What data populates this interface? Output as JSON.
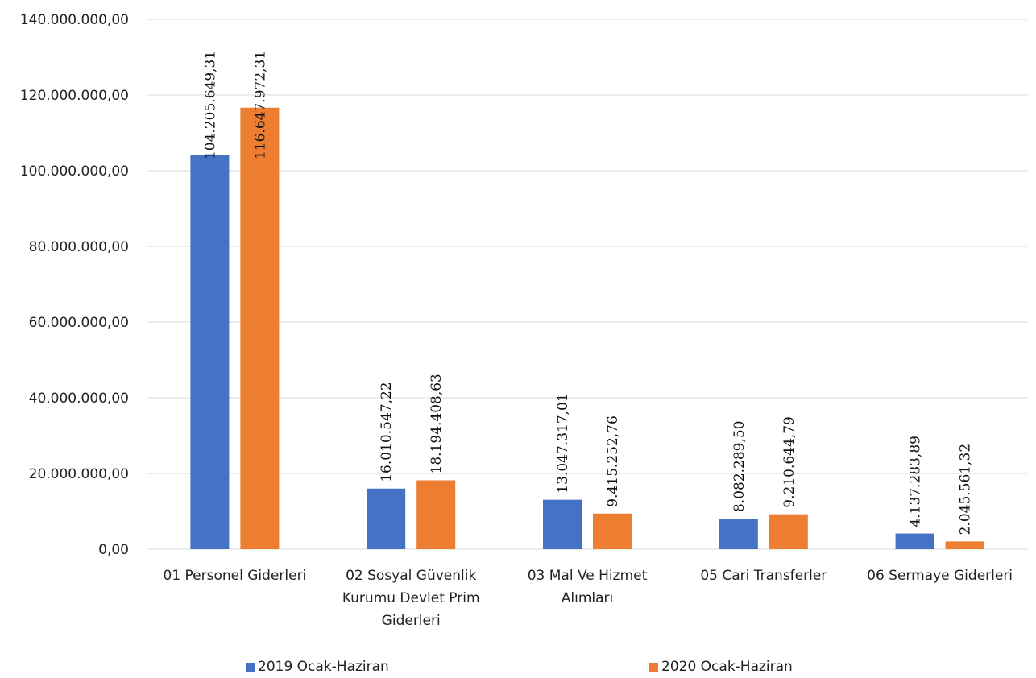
{
  "chart_data": {
    "type": "bar",
    "categories": [
      [
        "01 Personel Giderleri"
      ],
      [
        "02 Sosyal Güvenlik",
        "Kurumu Devlet Prim",
        "Giderleri"
      ],
      [
        "03 Mal Ve Hizmet",
        "Alımları"
      ],
      [
        "05 Cari Transferler"
      ],
      [
        "06 Sermaye Giderleri"
      ]
    ],
    "series": [
      {
        "name": "2019 Ocak-Haziran",
        "color": "#4472C4",
        "values": [
          104205649.31,
          16010547.22,
          13047317.01,
          8082289.5,
          4137283.89
        ],
        "labels": [
          "104.205.649,31",
          "16.010.547,22",
          "13.047.317,01",
          "8.082.289,50",
          "4.137.283,89"
        ]
      },
      {
        "name": "2020 Ocak-Haziran",
        "color": "#ED7D31",
        "values": [
          116647972.31,
          18194408.63,
          9415252.76,
          9210644.79,
          2045561.32
        ],
        "labels": [
          "116.647.972,31",
          "18.194.408,63",
          "9.415.252,76",
          "9.210.644,79",
          "2.045.561,32"
        ]
      }
    ],
    "yticks": [
      "0,00",
      "20.000.000,00",
      "40.000.000,00",
      "60.000.000,00",
      "80.000.000,00",
      "100.000.000,00",
      "120.000.000,00",
      "140.000.000,00"
    ],
    "ylim": [
      0,
      140000000
    ],
    "grid": true,
    "legend": "bottom",
    "title": "",
    "xlabel": "",
    "ylabel": ""
  }
}
